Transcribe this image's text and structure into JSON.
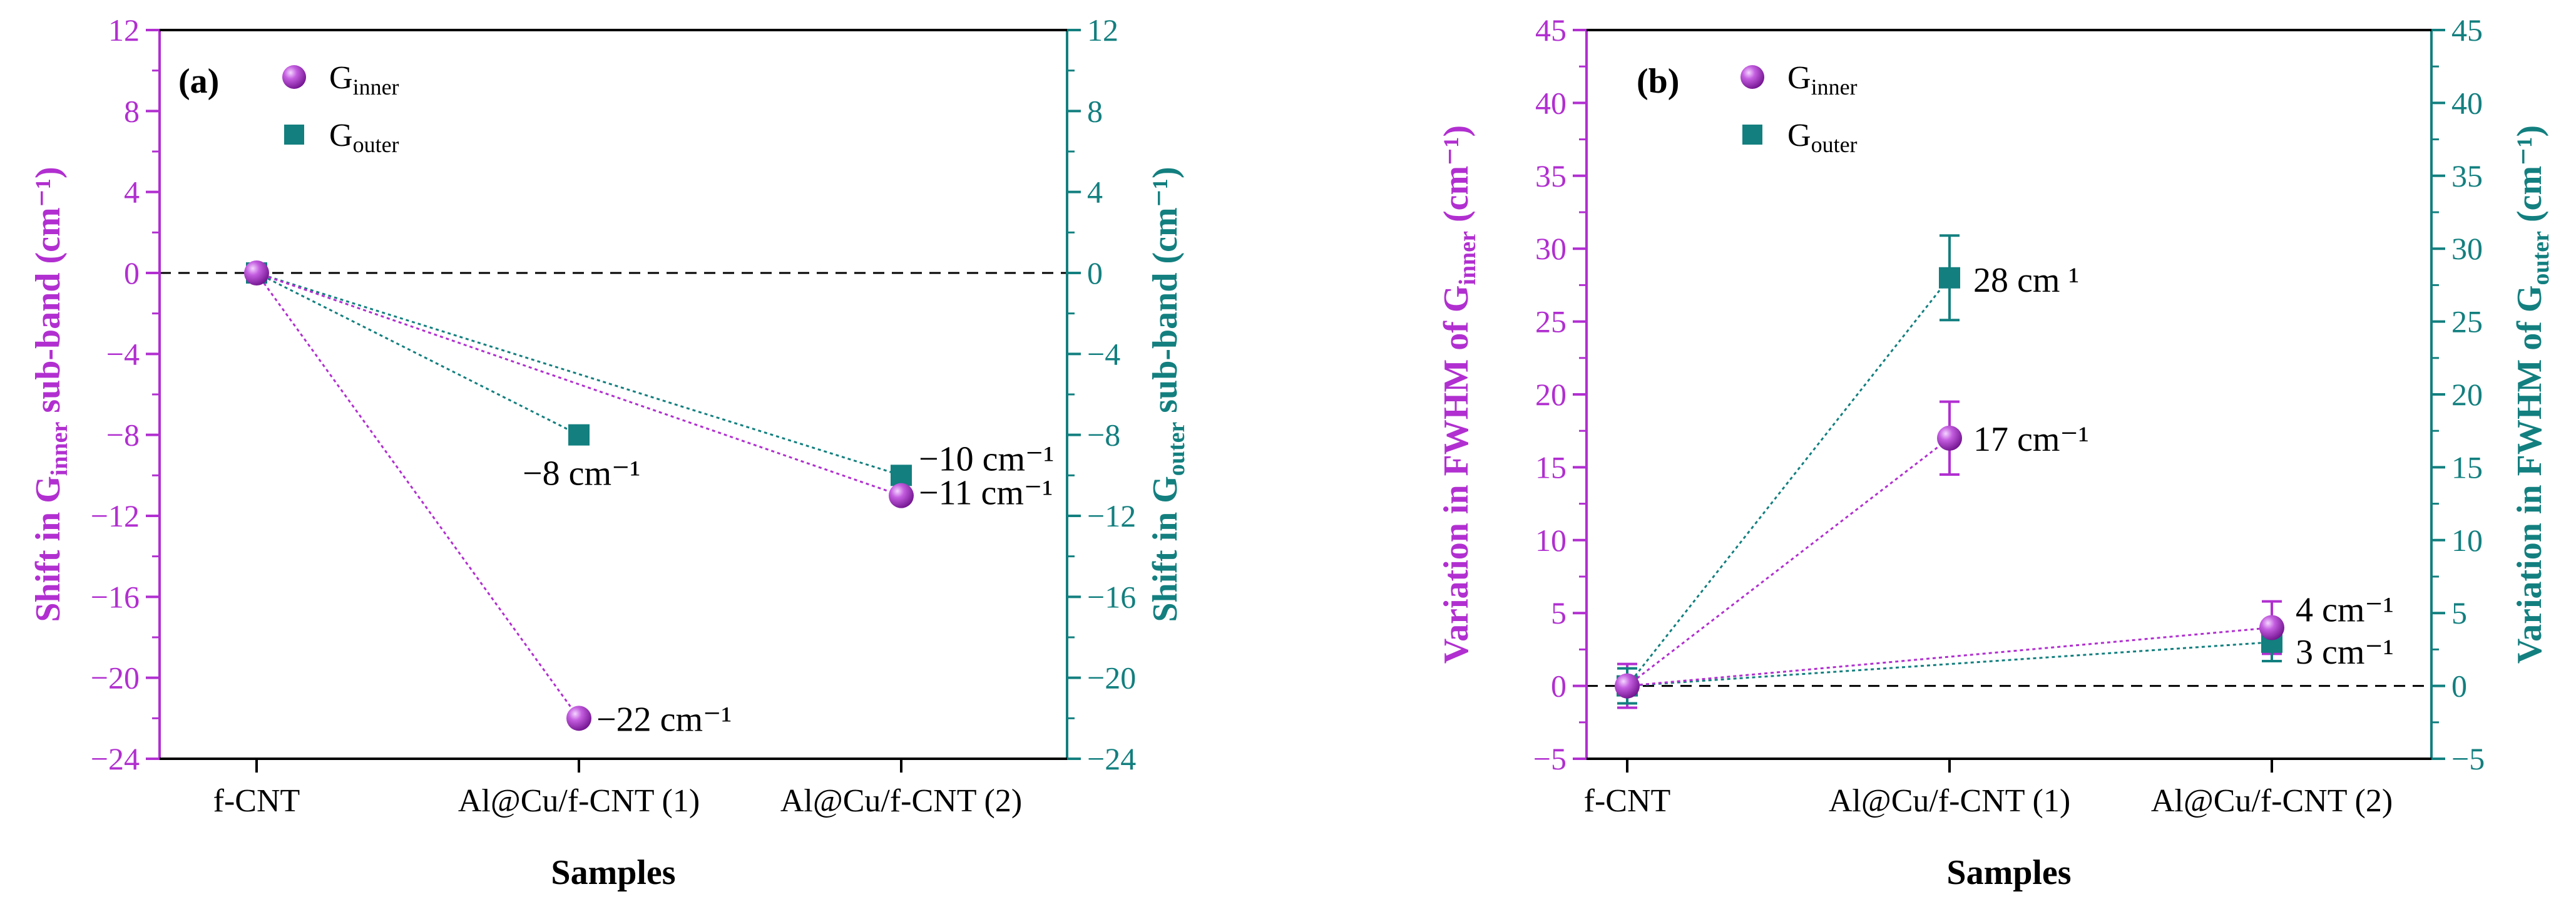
{
  "colors": {
    "inner": "#b12fd0",
    "outer": "#137f7f",
    "axis": "#000000",
    "zero": "#000000"
  },
  "chart_data": [
    {
      "type": "scatter",
      "panel": "(a)",
      "categories": [
        "f-CNT",
        "Al@Cu/f-CNT (1)",
        "Al@Cu/f-CNT (2)"
      ],
      "series": [
        {
          "name": "G",
          "sub": "inner",
          "key": "inner",
          "marker": "sphere",
          "values": [
            0,
            -22,
            -11
          ],
          "labels": [
            "",
            "−22 cm⁻¹",
            "−11 cm⁻¹"
          ],
          "errors": [
            0,
            0,
            0
          ]
        },
        {
          "name": "G",
          "sub": "outer",
          "key": "outer",
          "marker": "square",
          "values": [
            0,
            -8,
            -10
          ],
          "labels": [
            "",
            "−8 cm⁻¹",
            "−10 cm⁻¹"
          ],
          "errors": [
            0,
            0,
            0
          ]
        }
      ],
      "xlabel": "Samples",
      "ylabel_left": {
        "pre": "Shift in G",
        "sub": "inner",
        "post": " sub-band (cm⁻¹)"
      },
      "ylabel_right": {
        "pre": "Shift in G",
        "sub": "outer",
        "post": " sub-band (cm⁻¹)"
      },
      "ylim": [
        -24,
        12
      ],
      "yticks": [
        -24,
        -20,
        -16,
        -12,
        -8,
        -4,
        0,
        4,
        8,
        12
      ],
      "ytick_labels": [
        "-24",
        "-20",
        "-16",
        "-12",
        "-8",
        "-4",
        "0",
        "4",
        "8",
        "12"
      ],
      "zero_line": true,
      "legend_loc": "top-left"
    },
    {
      "type": "scatter",
      "panel": "(b)",
      "categories": [
        "f-CNT",
        "Al@Cu/f-CNT (1)",
        "Al@Cu/f-CNT (2)"
      ],
      "series": [
        {
          "name": "G",
          "sub": "inner",
          "key": "inner",
          "marker": "sphere",
          "values": [
            0,
            17,
            4
          ],
          "labels": [
            "",
            "17 cm⁻¹",
            "4 cm⁻¹"
          ],
          "errors": [
            1.5,
            2.5,
            1.8
          ]
        },
        {
          "name": "G",
          "sub": "outer",
          "key": "outer",
          "marker": "square",
          "values": [
            0,
            28,
            3
          ],
          "labels": [
            "",
            "28 cm ¹",
            "3 cm⁻¹"
          ],
          "errors": [
            1.2,
            2.9,
            1.3
          ]
        }
      ],
      "xlabel": "Samples",
      "ylabel_left": {
        "pre": "Variation in FWHM of G",
        "sub": "inner",
        "post": " (cm⁻¹)"
      },
      "ylabel_right": {
        "pre": "Variation in FWHM of G",
        "sub": "outer",
        "post": " (cm⁻¹)"
      },
      "ylim": [
        -5,
        45
      ],
      "yticks": [
        -5,
        0,
        5,
        10,
        15,
        20,
        25,
        30,
        35,
        40,
        45
      ],
      "ytick_labels": [
        "-5",
        "0",
        "5",
        "10",
        "15",
        "20",
        "25",
        "30",
        "35",
        "40",
        "45"
      ],
      "zero_line": true,
      "legend_loc": "top-left"
    }
  ]
}
